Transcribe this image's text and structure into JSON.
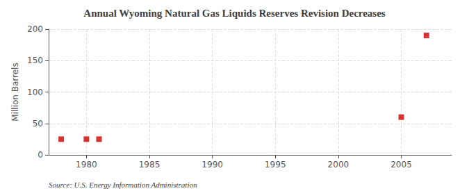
{
  "chart_data": {
    "type": "scatter",
    "title": "Annual Wyoming Natural Gas Liquids Reserves Revision Decreases",
    "ylabel": "Million Barrels",
    "annotations": [
      "Source: U.S. Energy Information Administration"
    ],
    "x": [
      1978,
      1980,
      1981,
      2005,
      2007
    ],
    "values": [
      25,
      25,
      25,
      60,
      190
    ],
    "color": "#cc0000",
    "marker": "square",
    "xlim": [
      1977,
      2009
    ],
    "xticks": [
      1980,
      1985,
      1990,
      1995,
      2000,
      2005
    ],
    "ylim": [
      0,
      200
    ],
    "yticks": [
      0,
      50,
      100,
      150,
      200
    ],
    "grid": true
  }
}
